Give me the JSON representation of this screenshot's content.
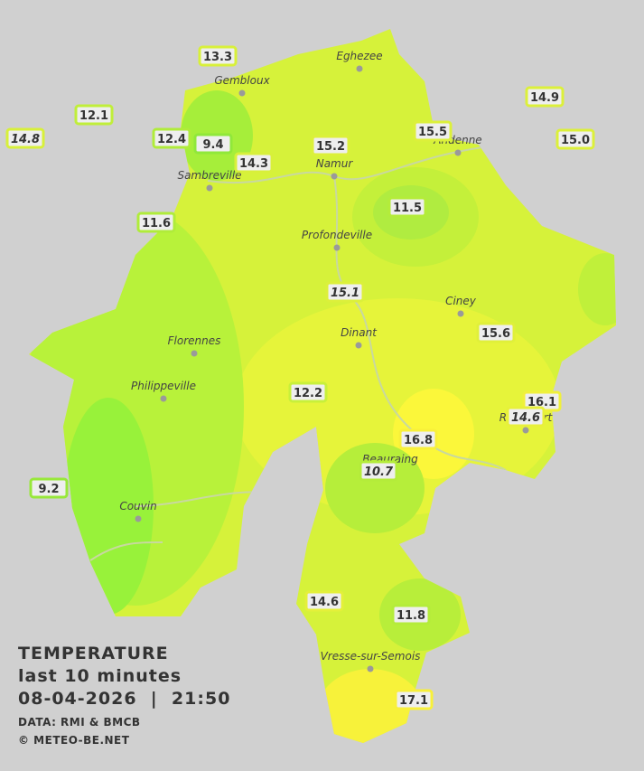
{
  "title": {
    "heading": "TEMPERATURE",
    "period": "last 10 minutes",
    "timestamp": "08-04-2026  |  21:50",
    "source": "DATA: RMI & BMCB",
    "copyright": "© METEO-BE.NET"
  },
  "towns": [
    "Eghezee",
    "Gembloux",
    "Andenne",
    "Namur",
    "Sambreville",
    "Profondeville",
    "Ciney",
    "Dinant",
    "Florennes",
    "Philippeville",
    "Rochefort",
    "Beauraing",
    "Couvin",
    "Vresse-sur-Semois"
  ],
  "stations": [
    "13.3",
    "12.1",
    "14.8",
    "12.4",
    "9.4",
    "14.3",
    "15.2",
    "15.5",
    "14.9",
    "15.0",
    "11.6",
    "11.5",
    "15.1",
    "15.6",
    "12.2",
    "16.1",
    "14.6",
    "16.8",
    "10.7",
    "9.2",
    "14.6",
    "11.8",
    "17.1"
  ]
}
